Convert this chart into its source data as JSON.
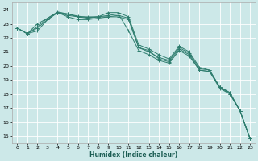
{
  "xlabel": "Humidex (Indice chaleur)",
  "bg_color": "#cce8e8",
  "grid_color": "#ffffff",
  "line_color": "#2e7d6e",
  "xlim": [
    -0.5,
    23.5
  ],
  "ylim": [
    14.5,
    24.5
  ],
  "yticks": [
    15,
    16,
    17,
    18,
    19,
    20,
    21,
    22,
    23,
    24
  ],
  "xticks": [
    0,
    1,
    2,
    3,
    4,
    5,
    6,
    7,
    8,
    9,
    10,
    11,
    12,
    13,
    14,
    15,
    16,
    17,
    18,
    19,
    20,
    21,
    22,
    23
  ],
  "lines": [
    [
      22.7,
      22.3,
      22.5,
      23.3,
      23.8,
      23.6,
      23.5,
      23.5,
      23.5,
      23.8,
      23.8,
      23.5,
      21.5,
      21.2,
      20.8,
      20.5,
      21.4,
      21.0,
      19.9,
      19.7,
      18.5,
      18.0,
      16.8,
      14.8
    ],
    [
      22.7,
      22.3,
      22.7,
      23.3,
      23.8,
      23.5,
      23.3,
      23.3,
      23.4,
      23.5,
      23.6,
      23.4,
      21.3,
      21.1,
      20.5,
      20.3,
      21.2,
      20.8,
      19.7,
      19.6,
      18.5,
      18.1,
      16.8,
      14.8
    ],
    [
      22.7,
      22.3,
      23.0,
      23.4,
      23.8,
      23.7,
      23.5,
      23.4,
      23.5,
      23.5,
      23.5,
      23.3,
      21.3,
      21.0,
      20.6,
      20.4,
      21.3,
      20.9,
      19.8,
      19.7,
      18.5,
      18.1,
      16.8,
      14.8
    ],
    [
      22.7,
      22.3,
      22.8,
      23.4,
      23.85,
      23.7,
      23.55,
      23.45,
      23.5,
      23.6,
      23.7,
      22.5,
      21.1,
      20.8,
      20.4,
      20.2,
      21.1,
      20.7,
      19.7,
      19.6,
      18.4,
      18.0,
      16.8,
      14.8
    ]
  ],
  "lines_with_markers": [
    0,
    1,
    2,
    3
  ],
  "marker_x": {
    "0": [
      0,
      1,
      2,
      3,
      4,
      5,
      6,
      7,
      8,
      9,
      10,
      11,
      16,
      17,
      21,
      22,
      23
    ],
    "1": [
      0,
      2,
      3,
      4,
      9,
      10,
      12,
      14,
      16,
      19,
      22,
      23
    ],
    "2": [
      0,
      2,
      3,
      4,
      9,
      10,
      16,
      19,
      22,
      23
    ],
    "3": [
      0,
      2,
      3,
      4,
      9,
      10,
      16,
      19,
      22,
      23
    ]
  }
}
